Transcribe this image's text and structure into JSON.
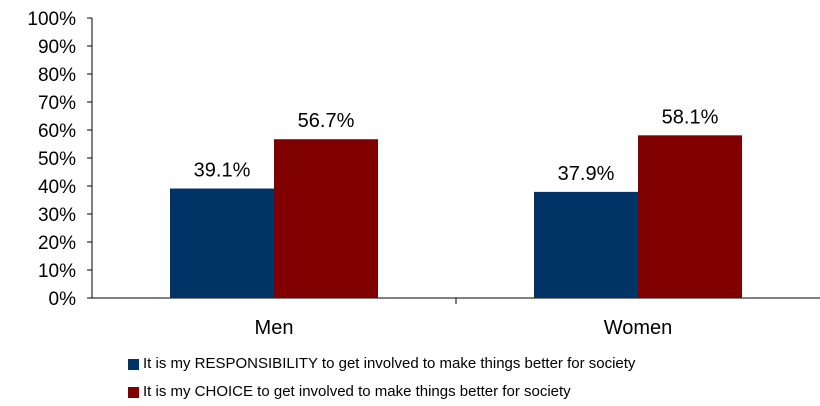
{
  "chart_data": {
    "type": "bar",
    "title": "",
    "xlabel": "",
    "ylabel": "",
    "categories": [
      "Men",
      "Women"
    ],
    "ylim": [
      0,
      100
    ],
    "yticks": [
      "0%",
      "10%",
      "20%",
      "30%",
      "40%",
      "50%",
      "60%",
      "70%",
      "80%",
      "90%",
      "100%"
    ],
    "grid": false,
    "legend_position": "bottom",
    "series": [
      {
        "name": "It is my RESPONSIBILITY to get involved to make things better for society",
        "values": [
          39.1,
          37.9
        ],
        "labels": [
          "39.1%",
          "37.9%"
        ],
        "color": "#003366"
      },
      {
        "name": "It is my CHOICE to get involved to make things better for society",
        "values": [
          56.7,
          58.1
        ],
        "labels": [
          "56.7%",
          "58.1%"
        ],
        "color": "#800000"
      }
    ]
  }
}
